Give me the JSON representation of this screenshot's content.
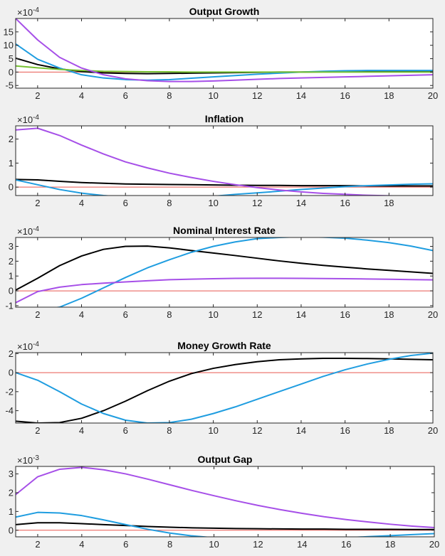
{
  "figure": {
    "background": "#f0f0f0",
    "zero_line_color": "#e8574f"
  },
  "chart_data": [
    {
      "type": "line",
      "title": "Output Growth",
      "exponent": {
        "base": "×10",
        "power": "-4"
      },
      "xlim": [
        1,
        20
      ],
      "ylim": [
        -6,
        20
      ],
      "xticks": [
        2,
        4,
        6,
        8,
        10,
        12,
        14,
        16,
        18,
        20
      ],
      "yticks": [
        -5,
        0,
        5,
        10,
        15
      ],
      "series": [
        {
          "color": "#000000",
          "x": [
            1,
            2,
            3,
            4,
            5,
            6,
            7,
            8,
            9,
            10,
            11,
            12,
            13,
            14,
            15,
            16,
            17,
            18,
            19,
            20
          ],
          "values": [
            5.2,
            2.8,
            1.2,
            0.2,
            -0.3,
            -0.5,
            -0.6,
            -0.5,
            -0.4,
            -0.3,
            -0.2,
            -0.1,
            0,
            0,
            0.1,
            0.1,
            0.1,
            0.1,
            0.1,
            0.1
          ]
        },
        {
          "color": "#1f9de0",
          "x": [
            1,
            2,
            3,
            4,
            5,
            6,
            7,
            8,
            9,
            10,
            11,
            12,
            13,
            14,
            15,
            16,
            17,
            18,
            19,
            20
          ],
          "values": [
            10.5,
            4.8,
            1.5,
            -1,
            -2.2,
            -2.8,
            -3,
            -2.8,
            -2.3,
            -1.8,
            -1.3,
            -0.8,
            -0.4,
            0,
            0.3,
            0.5,
            0.6,
            0.6,
            0.6,
            0.6
          ]
        },
        {
          "color": "#77c232",
          "x": [
            1,
            2,
            3,
            4,
            5,
            6,
            7,
            8,
            9,
            10,
            11,
            12,
            13,
            14,
            15,
            16,
            17,
            18,
            19,
            20
          ],
          "values": [
            2.3,
            1.6,
            1.0,
            0.6,
            0.3,
            0.2,
            0.1,
            0.1,
            0,
            0,
            0,
            0,
            0,
            0,
            0,
            0,
            0,
            0,
            0,
            0
          ]
        },
        {
          "color": "#a64fe8",
          "x": [
            1,
            2,
            3,
            4,
            5,
            6,
            7,
            8,
            9,
            10,
            11,
            12,
            13,
            14,
            15,
            16,
            17,
            18,
            19,
            20
          ],
          "values": [
            20,
            12,
            5.5,
            1.5,
            -1,
            -2.5,
            -3.2,
            -3.5,
            -3.5,
            -3.3,
            -3,
            -2.7,
            -2.4,
            -2.2,
            -2,
            -1.8,
            -1.6,
            -1.4,
            -1.2,
            -1.0
          ]
        }
      ]
    },
    {
      "type": "line",
      "title": "Inflation",
      "exponent": {
        "base": "×10",
        "power": "-4"
      },
      "xlim": [
        1,
        20
      ],
      "ylim": [
        -0.35,
        2.55
      ],
      "xticks": [
        2,
        4,
        6,
        8,
        10,
        12,
        14,
        16,
        18
      ],
      "yticks": [
        0,
        1,
        2
      ],
      "series": [
        {
          "color": "#000000",
          "x": [
            1,
            2,
            3,
            4,
            5,
            6,
            7,
            8,
            9,
            10,
            11,
            12,
            13,
            14,
            15,
            16,
            17,
            18,
            19,
            20
          ],
          "values": [
            0.32,
            0.3,
            0.24,
            0.19,
            0.16,
            0.13,
            0.12,
            0.11,
            0.1,
            0.09,
            0.08,
            0.07,
            0.07,
            0.06,
            0.06,
            0.06,
            0.05,
            0.05,
            0.05,
            0.05
          ]
        },
        {
          "color": "#1f9de0",
          "x": [
            1,
            2,
            3,
            4,
            5,
            6,
            7,
            8,
            9,
            10,
            11,
            12,
            13,
            14,
            15,
            16,
            17,
            18,
            19,
            20
          ],
          "values": [
            0.3,
            0.1,
            -0.1,
            -0.25,
            -0.35,
            -0.42,
            -0.46,
            -0.46,
            -0.44,
            -0.38,
            -0.3,
            -0.24,
            -0.17,
            -0.1,
            -0.04,
            0.02,
            0.06,
            0.09,
            0.12,
            0.14
          ]
        },
        {
          "color": "#a64fe8",
          "x": [
            1,
            2,
            3,
            4,
            5,
            6,
            7,
            8,
            9,
            10,
            11,
            12,
            13,
            14,
            15,
            16,
            17,
            18,
            19,
            20
          ],
          "values": [
            2.38,
            2.45,
            2.15,
            1.75,
            1.38,
            1.05,
            0.8,
            0.58,
            0.4,
            0.24,
            0.1,
            -0.02,
            -0.12,
            -0.2,
            -0.26,
            -0.3,
            -0.34,
            -0.36,
            -0.38,
            -0.4
          ]
        }
      ]
    },
    {
      "type": "line",
      "title": "Nominal Interest Rate",
      "exponent": {
        "base": "×10",
        "power": "-4"
      },
      "xlim": [
        1,
        20
      ],
      "ylim": [
        -1.1,
        3.6
      ],
      "xticks": [
        2,
        4,
        6,
        8,
        10,
        12,
        14,
        16,
        18,
        20
      ],
      "yticks": [
        -1,
        0,
        1,
        2,
        3
      ],
      "series": [
        {
          "color": "#000000",
          "x": [
            1,
            2,
            3,
            4,
            5,
            6,
            7,
            8,
            9,
            10,
            11,
            12,
            13,
            14,
            15,
            16,
            17,
            18,
            19,
            20
          ],
          "values": [
            0.05,
            0.85,
            1.7,
            2.35,
            2.8,
            3.0,
            3.02,
            2.9,
            2.72,
            2.55,
            2.38,
            2.2,
            2.02,
            1.86,
            1.72,
            1.6,
            1.48,
            1.38,
            1.28,
            1.18
          ]
        },
        {
          "color": "#1f9de0",
          "x": [
            1,
            2,
            3,
            4,
            5,
            6,
            7,
            8,
            9,
            10,
            11,
            12,
            13,
            14,
            15,
            16,
            17,
            18,
            19,
            20
          ],
          "values": [
            -1.2,
            -1.3,
            -1.1,
            -0.5,
            0.2,
            0.9,
            1.55,
            2.1,
            2.6,
            3.0,
            3.3,
            3.52,
            3.6,
            3.65,
            3.62,
            3.55,
            3.42,
            3.25,
            3.02,
            2.72
          ]
        },
        {
          "color": "#a64fe8",
          "x": [
            1,
            2,
            3,
            4,
            5,
            6,
            7,
            8,
            9,
            10,
            11,
            12,
            13,
            14,
            15,
            16,
            17,
            18,
            19,
            20
          ],
          "values": [
            -0.8,
            -0.05,
            0.25,
            0.42,
            0.52,
            0.6,
            0.68,
            0.75,
            0.79,
            0.82,
            0.84,
            0.85,
            0.85,
            0.84,
            0.83,
            0.82,
            0.8,
            0.78,
            0.76,
            0.74
          ]
        }
      ]
    },
    {
      "type": "line",
      "title": "Money Growth Rate",
      "exponent": {
        "base": "×10",
        "power": "-4"
      },
      "xlim": [
        1,
        20
      ],
      "ylim": [
        -5.3,
        2.1
      ],
      "xticks": [
        2,
        4,
        6,
        8,
        10,
        12,
        14,
        16,
        18,
        20
      ],
      "yticks": [
        -4,
        -2,
        0,
        2
      ],
      "series": [
        {
          "color": "#000000",
          "x": [
            1,
            2,
            3,
            4,
            5,
            6,
            7,
            8,
            9,
            10,
            11,
            12,
            13,
            14,
            15,
            16,
            17,
            18,
            19,
            20
          ],
          "values": [
            -5.1,
            -5.3,
            -5.25,
            -4.8,
            -4,
            -3,
            -1.9,
            -0.9,
            -0.1,
            0.45,
            0.85,
            1.15,
            1.35,
            1.45,
            1.5,
            1.5,
            1.48,
            1.45,
            1.4,
            1.35
          ]
        },
        {
          "color": "#1f9de0",
          "x": [
            1,
            2,
            3,
            4,
            5,
            6,
            7,
            8,
            9,
            10,
            11,
            12,
            13,
            14,
            15,
            16,
            17,
            18,
            19,
            20
          ],
          "values": [
            0,
            -0.8,
            -2,
            -3.3,
            -4.3,
            -5,
            -5.3,
            -5.25,
            -4.9,
            -4.3,
            -3.6,
            -2.8,
            -2.0,
            -1.2,
            -0.4,
            0.3,
            0.9,
            1.4,
            1.8,
            2.05
          ]
        }
      ]
    },
    {
      "type": "line",
      "title": "Output Gap",
      "exponent": {
        "base": "×10",
        "power": "-3"
      },
      "xlim": [
        1,
        20
      ],
      "ylim": [
        -0.35,
        3.4
      ],
      "xticks": [
        2,
        4,
        6,
        8,
        10,
        12,
        14,
        16,
        18,
        20
      ],
      "yticks": [
        0,
        1,
        2,
        3
      ],
      "series": [
        {
          "color": "#000000",
          "x": [
            1,
            2,
            3,
            4,
            5,
            6,
            7,
            8,
            9,
            10,
            11,
            12,
            13,
            14,
            15,
            16,
            17,
            18,
            19,
            20
          ],
          "values": [
            0.3,
            0.4,
            0.4,
            0.35,
            0.3,
            0.25,
            0.2,
            0.16,
            0.13,
            0.11,
            0.09,
            0.08,
            0.07,
            0.06,
            0.06,
            0.05,
            0.05,
            0.05,
            0.04,
            0.04
          ]
        },
        {
          "color": "#1f9de0",
          "x": [
            1,
            2,
            3,
            4,
            5,
            6,
            7,
            8,
            9,
            10,
            11,
            12,
            13,
            14,
            15,
            16,
            17,
            18,
            19,
            20
          ],
          "values": [
            0.7,
            0.95,
            0.92,
            0.78,
            0.55,
            0.3,
            0.05,
            -0.15,
            -0.3,
            -0.4,
            -0.46,
            -0.5,
            -0.5,
            -0.48,
            -0.44,
            -0.4,
            -0.34,
            -0.29,
            -0.23,
            -0.18
          ]
        },
        {
          "color": "#a64fe8",
          "x": [
            1,
            2,
            3,
            4,
            5,
            6,
            7,
            8,
            9,
            10,
            11,
            12,
            13,
            14,
            15,
            16,
            17,
            18,
            19,
            20
          ],
          "values": [
            1.9,
            2.85,
            3.25,
            3.35,
            3.22,
            3.0,
            2.72,
            2.42,
            2.12,
            1.84,
            1.57,
            1.32,
            1.1,
            0.9,
            0.72,
            0.57,
            0.44,
            0.32,
            0.22,
            0.14
          ]
        }
      ]
    }
  ]
}
